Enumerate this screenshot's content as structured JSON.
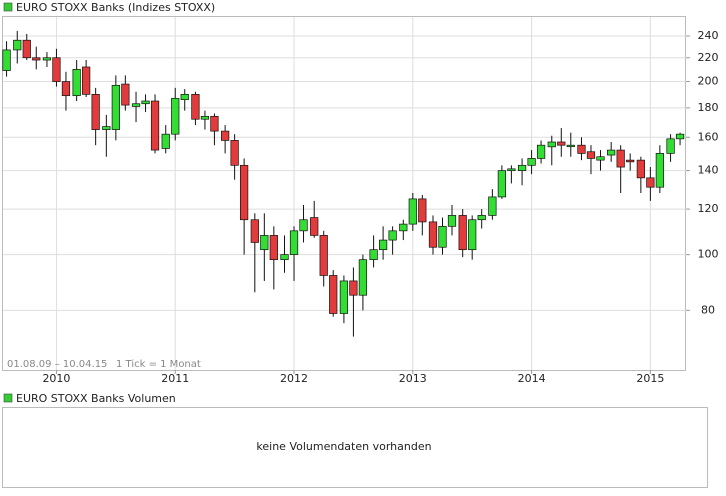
{
  "chart_data": {
    "type": "candlestick",
    "series": [
      {
        "name": "EURO STOXX Banks (Indizes STOXX)",
        "color": "#33cc33",
        "up_color": "#33dd33",
        "down_color": "#e23b3b",
        "x": [
          2009.58,
          2009.67,
          2009.75,
          2009.83,
          2009.92,
          2010.0,
          2010.08,
          2010.17,
          2010.25,
          2010.33,
          2010.42,
          2010.5,
          2010.58,
          2010.67,
          2010.75,
          2010.83,
          2010.92,
          2011.0,
          2011.08,
          2011.17,
          2011.25,
          2011.33,
          2011.42,
          2011.5,
          2011.58,
          2011.67,
          2011.75,
          2011.83,
          2011.92,
          2012.0,
          2012.08,
          2012.17,
          2012.25,
          2012.33,
          2012.42,
          2012.5,
          2012.58,
          2012.67,
          2012.75,
          2012.83,
          2012.92,
          2013.0,
          2013.08,
          2013.17,
          2013.25,
          2013.33,
          2013.42,
          2013.5,
          2013.58,
          2013.67,
          2013.75,
          2013.83,
          2013.92,
          2014.0,
          2014.08,
          2014.17,
          2014.25,
          2014.33,
          2014.42,
          2014.5,
          2014.58,
          2014.67,
          2014.75,
          2014.83,
          2014.92,
          2015.0,
          2015.08,
          2015.17,
          2015.25
        ],
        "open": [
          209,
          227,
          236,
          220,
          218,
          220,
          200,
          189,
          212,
          190,
          165,
          165,
          198,
          181,
          183,
          185,
          153,
          162,
          186,
          190,
          172,
          174,
          164,
          158,
          143,
          115,
          102,
          108,
          98,
          100,
          110,
          116,
          108,
          92,
          79,
          90,
          85,
          98,
          102,
          106,
          110,
          113,
          125,
          114,
          103,
          112,
          117,
          102,
          115,
          117,
          126,
          140,
          140,
          143,
          147,
          154,
          157,
          155,
          155,
          151,
          146,
          149,
          152,
          146,
          146,
          136,
          131,
          150,
          159
        ],
        "high": [
          235,
          245,
          242,
          230,
          225,
          228,
          208,
          218,
          218,
          195,
          175,
          205,
          205,
          192,
          190,
          190,
          168,
          195,
          194,
          192,
          178,
          176,
          168,
          162,
          147,
          118,
          118,
          112,
          108,
          112,
          122,
          124,
          110,
          94,
          92,
          95,
          100,
          108,
          112,
          112,
          115,
          128,
          127,
          117,
          116,
          122,
          120,
          117,
          120,
          130,
          143,
          143,
          147,
          152,
          158,
          161,
          166,
          163,
          160,
          155,
          152,
          157,
          155,
          150,
          148,
          142,
          155,
          162,
          163
        ],
        "low": [
          204,
          215,
          218,
          210,
          212,
          196,
          178,
          185,
          188,
          155,
          148,
          158,
          178,
          170,
          177,
          150,
          150,
          158,
          178,
          168,
          165,
          155,
          150,
          135,
          100,
          86,
          90,
          87,
          93,
          90,
          105,
          107,
          88,
          78,
          76,
          72,
          80,
          95,
          98,
          100,
          106,
          110,
          108,
          100,
          100,
          108,
          99,
          98,
          111,
          115,
          125,
          133,
          132,
          138,
          144,
          143,
          148,
          148,
          146,
          138,
          140,
          145,
          128,
          140,
          128,
          124,
          128,
          145,
          155
        ],
        "close": [
          227,
          236,
          220,
          218,
          220,
          200,
          189,
          210,
          190,
          165,
          167,
          197,
          182,
          183,
          185,
          152,
          162,
          187,
          190,
          172,
          174,
          164,
          158,
          143,
          115,
          105,
          108,
          98,
          100,
          110,
          115,
          108,
          92,
          79,
          90,
          85,
          98,
          102,
          106,
          110,
          113,
          125,
          114,
          103,
          112,
          117,
          102,
          115,
          117,
          126,
          140,
          141,
          143,
          147,
          155,
          157,
          155,
          155,
          150,
          147,
          148,
          152,
          142,
          145,
          136,
          131,
          150,
          159,
          162
        ]
      }
    ],
    "xlim": [
      2009.55,
      2015.3
    ],
    "xticks": [
      2010,
      2011,
      2012,
      2013,
      2014,
      2015
    ],
    "ylim": [
      63,
      259
    ],
    "yticks": [
      80,
      100,
      120,
      140,
      160,
      180,
      200,
      220,
      240
    ],
    "log_scale": true,
    "grid": true,
    "note_range": "01.08.09 – 10.04.15",
    "note_tick": "1 Tick = 1 Monat"
  },
  "volume_panel": {
    "legend": "EURO STOXX Banks Volumen",
    "color": "#33cc33",
    "message": "keine Volumendaten vorhanden"
  }
}
